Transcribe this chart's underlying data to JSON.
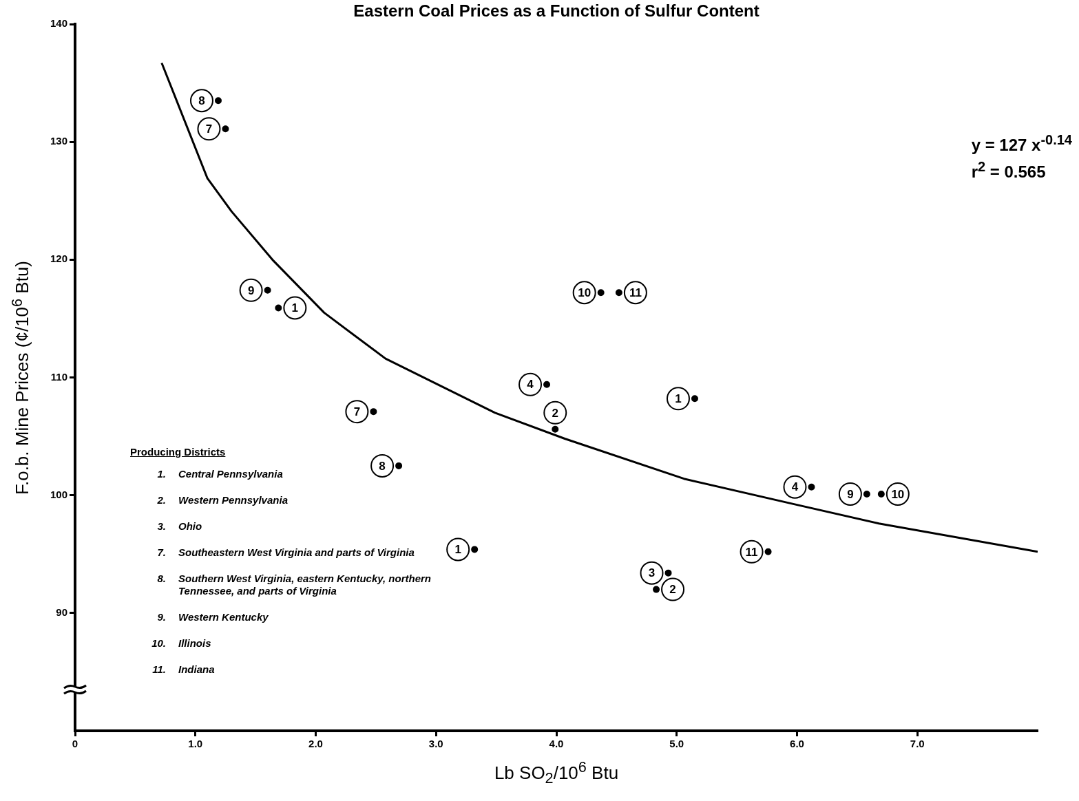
{
  "chart_data": {
    "type": "scatter",
    "title": "Eastern Coal Prices as a Function of Sulfur Content",
    "xlabel": "Lb SO$_{2}$/10$^{6}$ Btu",
    "ylabel": "F.o.b. Mine Prices (¢/10$^{6}$ Btu)",
    "xlim": [
      0,
      8
    ],
    "xticks": [
      0,
      {
        "value": 1,
        "label": "1.0"
      },
      {
        "value": 2,
        "label": "2.0"
      },
      {
        "value": 3,
        "label": "3.0"
      },
      {
        "value": 4,
        "label": "4.0"
      },
      {
        "value": 5,
        "label": "5.0"
      },
      {
        "value": 6,
        "label": "6.0"
      },
      {
        "value": 7,
        "label": "7.0"
      }
    ],
    "ylim": [
      80,
      140
    ],
    "yticks": [
      90,
      100,
      110,
      120,
      130,
      140
    ],
    "grid": false,
    "legend": false,
    "series": [
      {
        "type": "scatter",
        "color": "#000000",
        "marker": "circle",
        "x": [
          1.19,
          1.25,
          1.6,
          1.69,
          2.48,
          2.69,
          3.32,
          3.92,
          3.99,
          4.37,
          4.52,
          5.15,
          4.93,
          4.83,
          5.76,
          6.12,
          6.58,
          6.7
        ],
        "values": [
          133.5,
          131.1,
          117.4,
          115.9,
          107.1,
          102.5,
          95.4,
          109.4,
          105.6,
          117.2,
          117.2,
          108.2,
          93.4,
          92.0,
          95.2,
          100.7,
          100.1,
          100.1
        ]
      },
      {
        "type": "line",
        "color": "#000000",
        "marker": "none",
        "line_style": "solid",
        "x": [
          0.72,
          1.1,
          1.3,
          1.64,
          2.07,
          2.58,
          3.49,
          4.07,
          5.06,
          5.95,
          6.68,
          8.0
        ],
        "values": [
          136.7,
          126.9,
          124.1,
          120.0,
          115.5,
          111.6,
          107.0,
          104.8,
          101.4,
          99.3,
          97.6,
          95.2
        ]
      }
    ],
    "annotations": [
      "Producing Districts",
      "1. Central Pennsylvania",
      "2. Western Pennsylvania",
      "3. Ohio",
      "7. Southeastern West Virginia and parts of Virginia",
      "8. Southern West Virginia, eastern Kentucky, northern Tennessee, and parts of Virginia",
      "9. Western Kentucky",
      "10. Illinois",
      "11. Indiana",
      "y = 127 x$^{-0.14}$",
      "r$^{2}$ = 0.565",
      {
        "text": "8",
        "x": 1.19,
        "y": 133.5
      },
      {
        "text": "7",
        "x": 1.25,
        "y": 131.1
      },
      {
        "text": "9",
        "x": 1.6,
        "y": 117.4
      },
      {
        "text": "1",
        "x": 1.69,
        "y": 115.9
      },
      {
        "text": "7",
        "x": 2.48,
        "y": 107.1
      },
      {
        "text": "8",
        "x": 2.69,
        "y": 102.5
      },
      {
        "text": "1",
        "x": 3.32,
        "y": 95.4
      },
      {
        "text": "4",
        "x": 3.92,
        "y": 109.4
      },
      {
        "text": "2",
        "x": 3.99,
        "y": 105.6
      },
      {
        "text": "10",
        "x": 4.37,
        "y": 117.2
      },
      {
        "text": "11",
        "x": 4.52,
        "y": 117.2
      },
      {
        "text": "1",
        "x": 5.15,
        "y": 108.2
      },
      {
        "text": "3",
        "x": 4.93,
        "y": 93.4
      },
      {
        "text": "2",
        "x": 4.83,
        "y": 92.0
      },
      {
        "text": "11",
        "x": 5.76,
        "y": 95.2
      },
      {
        "text": "4",
        "x": 6.12,
        "y": 100.7
      },
      {
        "text": "9",
        "x": 6.58,
        "y": 100.1
      },
      {
        "text": "10",
        "x": 6.7,
        "y": 100.1
      }
    ]
  }
}
